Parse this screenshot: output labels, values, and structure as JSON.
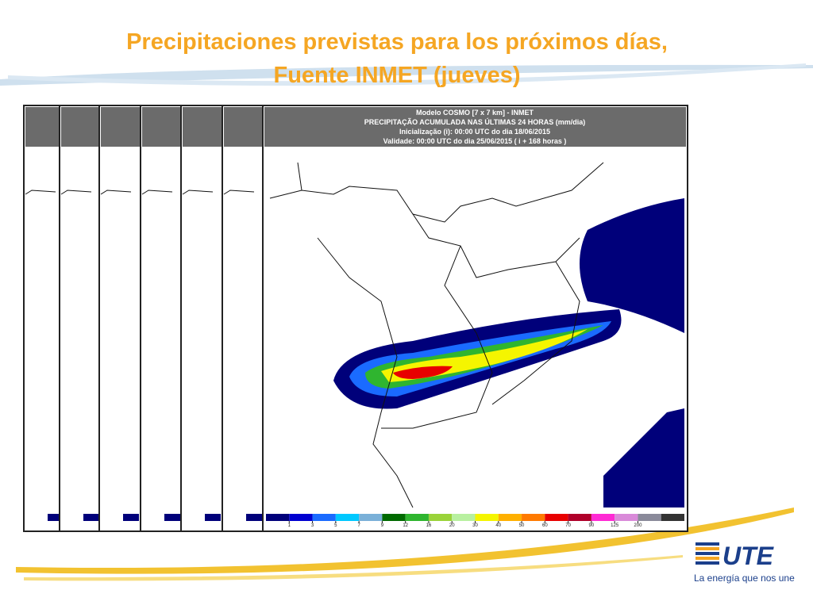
{
  "title": [
    "Precipitaciones previstas para los próximos días,",
    "Fuente INMET (jueves)"
  ],
  "map": {
    "header": [
      "Modelo COSMO [7 x 7 km] - INMET",
      "PRECIPITAÇÃO ACUMULADA NAS ÚLTIMAS 24 HORAS (mm/dia)",
      "Inicialização (i): 00:00 UTC do dia 18/06/2015",
      "Validade: 00:00 UTC do dia 25/06/2015 ( i + 168 horas )"
    ],
    "colorbar": {
      "ticks": [
        1,
        3,
        5,
        7,
        9,
        12,
        16,
        20,
        30,
        40,
        50,
        60,
        70,
        90,
        125,
        200
      ],
      "colors": [
        "#00007a",
        "#0000d0",
        "#1a6bff",
        "#00c8ff",
        "#7ab0d8",
        "#006a00",
        "#2fb52f",
        "#9ad33a",
        "#b8f0a0",
        "#f5f500",
        "#ffb000",
        "#ff7a00",
        "#e80000",
        "#b0002a",
        "#ff2ad4",
        "#d98ad9",
        "#8a8a9a",
        "#333333"
      ]
    }
  },
  "logo": {
    "name": "UTE",
    "tagline": "La energía que nos une"
  }
}
